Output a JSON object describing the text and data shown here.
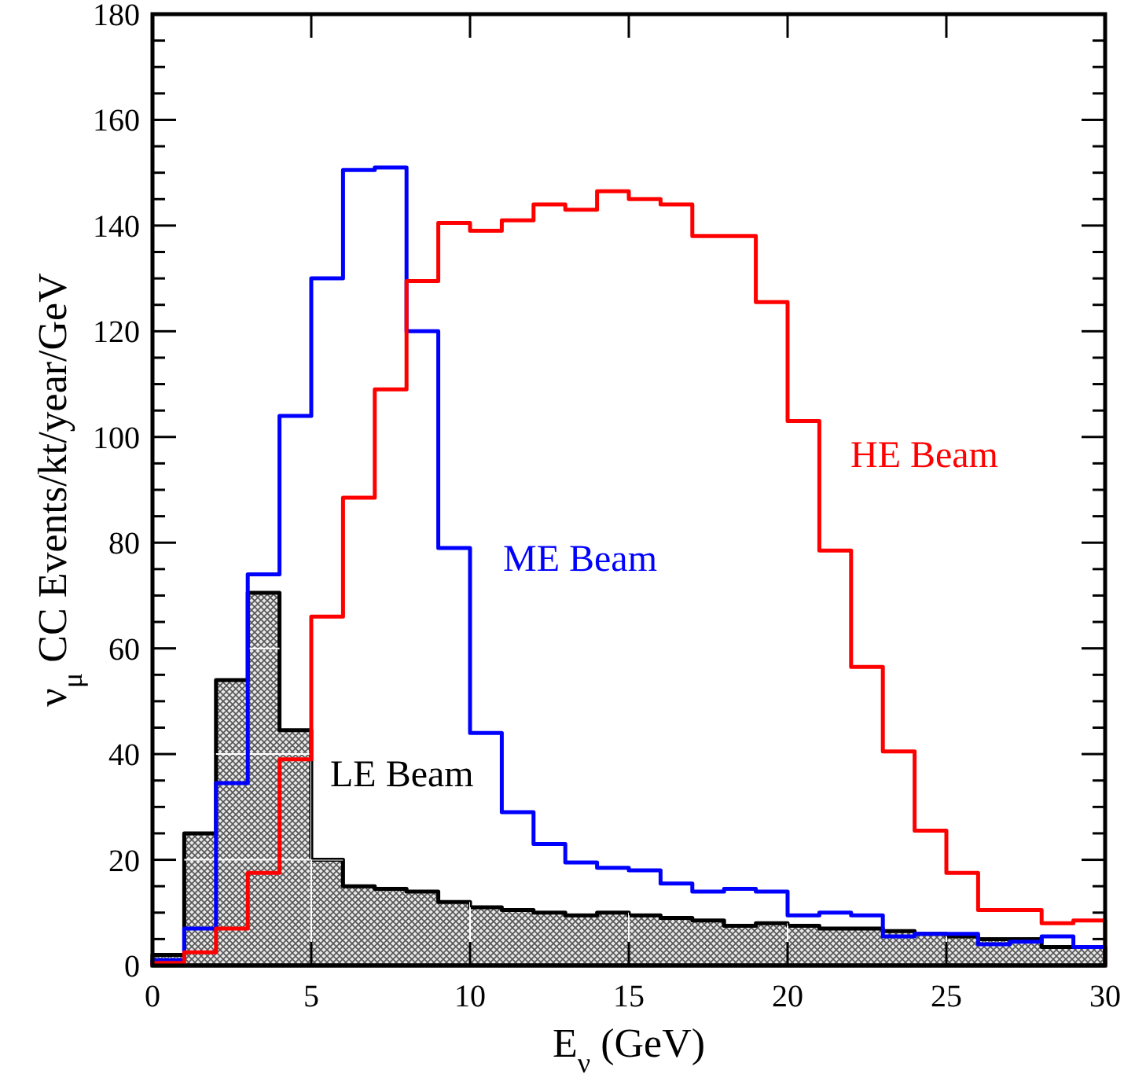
{
  "chart_data": {
    "type": "histogram",
    "xlabel": "E$_{ν}$ (GeV)",
    "ylabel": "ν$_{μ}$ CC Events/kt/year/GeV",
    "bins": [
      0,
      1,
      2,
      3,
      4,
      5,
      6,
      7,
      8,
      9,
      10,
      11,
      12,
      13,
      14,
      15,
      16,
      17,
      18,
      19,
      20,
      21,
      22,
      23,
      24,
      25,
      26,
      27,
      28,
      29,
      30
    ],
    "series": [
      {
        "name": "LE Beam",
        "color": "#000000",
        "values": [
          2,
          25,
          54,
          70.5,
          44.5,
          20,
          15,
          14.5,
          14,
          12,
          11,
          10.5,
          10,
          9.5,
          10,
          9.5,
          9,
          8.5,
          7.5,
          8,
          7.5,
          7,
          7,
          6.5,
          6,
          5.5,
          5,
          5,
          3.5,
          3.5
        ]
      },
      {
        "name": "ME Beam",
        "color": "#0000ff",
        "values": [
          1,
          7,
          34.5,
          74,
          104,
          130,
          150.5,
          151,
          120,
          79,
          44,
          29,
          23,
          19.5,
          18.5,
          18,
          15.5,
          14,
          14.5,
          14,
          9.5,
          10,
          9.5,
          5.5,
          6,
          6,
          4,
          4.5,
          5.5,
          3.5
        ]
      },
      {
        "name": "HE Beam",
        "color": "#ff0000",
        "values": [
          0.5,
          2.5,
          7,
          17.5,
          39,
          66,
          88.5,
          109,
          129.5,
          140.5,
          139,
          141,
          144,
          143,
          146.5,
          145,
          144,
          138,
          138,
          125.5,
          103,
          78.5,
          56.5,
          40.5,
          25.5,
          17.5,
          10.5,
          10.5,
          8,
          8.5
        ]
      }
    ],
    "xlim": [
      0,
      30
    ],
    "xticks": [
      0,
      5,
      10,
      15,
      20,
      25,
      30
    ],
    "ylim": [
      0,
      180
    ],
    "yticks": [
      0,
      {
        "value": 5,
        "label": null
      },
      {
        "value": 10,
        "label": null
      },
      {
        "value": 15,
        "label": null
      },
      20,
      {
        "value": 25,
        "label": null
      },
      {
        "value": 30,
        "label": null
      },
      {
        "value": 35,
        "label": null
      },
      40,
      {
        "value": 45,
        "label": null
      },
      {
        "value": 50,
        "label": null
      },
      {
        "value": 55,
        "label": null
      },
      60,
      {
        "value": 65,
        "label": null
      },
      {
        "value": 70,
        "label": null
      },
      {
        "value": 75,
        "label": null
      },
      80,
      {
        "value": 85,
        "label": null
      },
      {
        "value": 90,
        "label": null
      },
      {
        "value": 95,
        "label": null
      },
      100,
      {
        "value": 105,
        "label": null
      },
      {
        "value": 110,
        "label": null
      },
      {
        "value": 115,
        "label": null
      },
      120,
      {
        "value": 125,
        "label": null
      },
      {
        "value": 130,
        "label": null
      },
      {
        "value": 135,
        "label": null
      },
      140,
      {
        "value": 145,
        "label": null
      },
      {
        "value": 150,
        "label": null
      },
      {
        "value": 155,
        "label": null
      },
      160,
      {
        "value": 165,
        "label": null
      },
      {
        "value": 170,
        "label": null
      },
      {
        "value": 175,
        "label": null
      },
      180
    ],
    "grid": true,
    "legend": false
  }
}
